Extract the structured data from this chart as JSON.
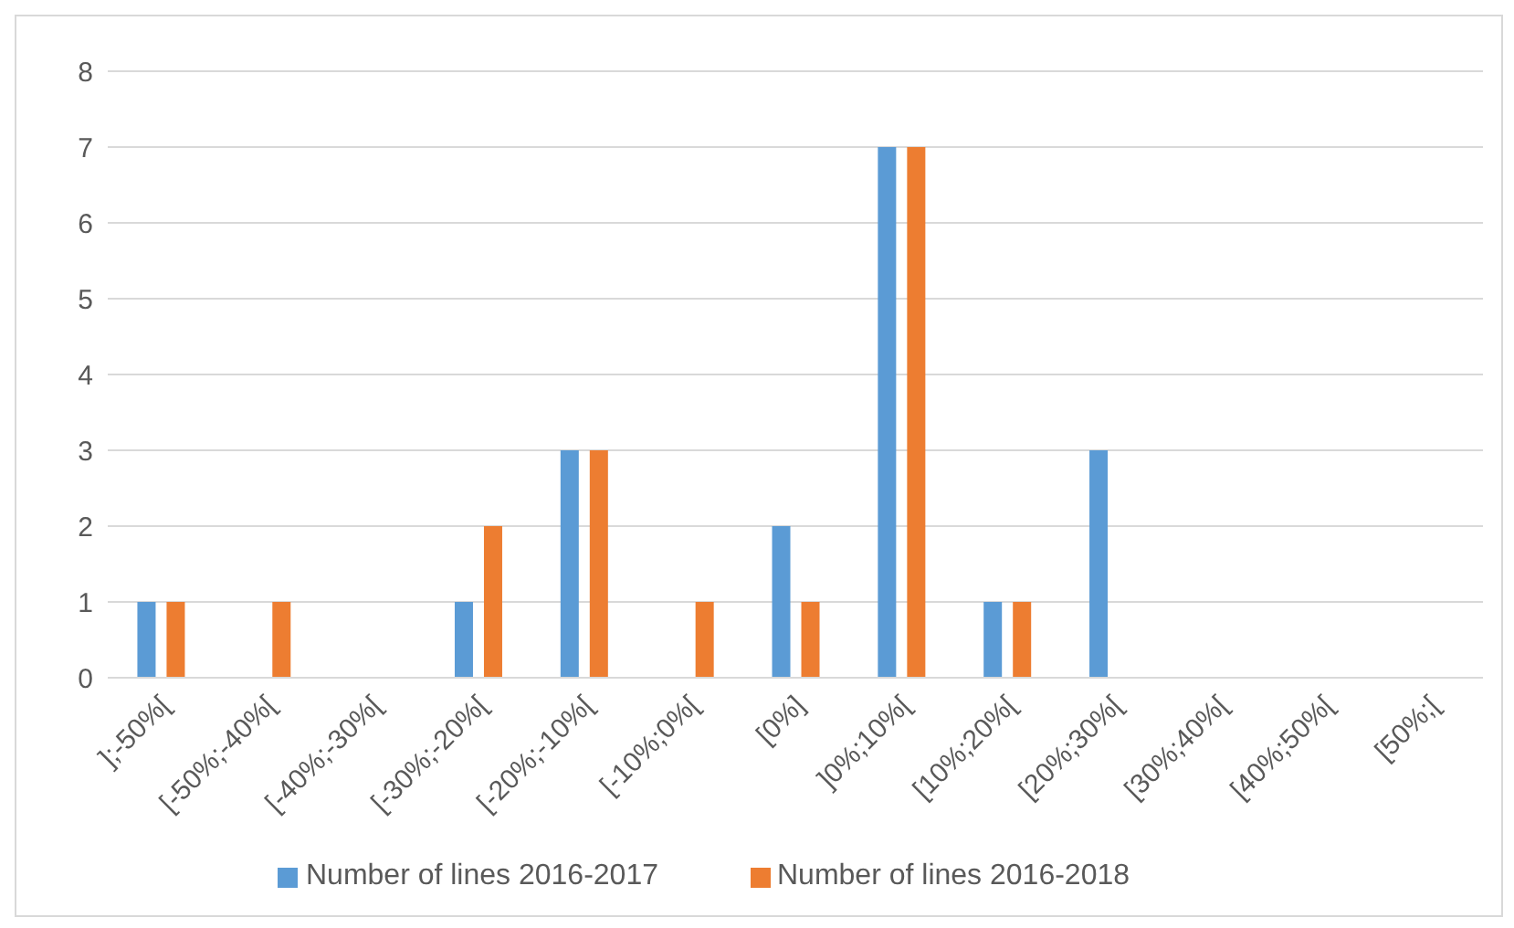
{
  "chart_data": {
    "type": "bar",
    "categories": [
      "];-50%[",
      "[-50%;-40%[",
      "[-40%;-30%[",
      "[-30%;-20%[",
      "[-20%;-10%[",
      "[-10%;0%[",
      "[0%]",
      "]0%;10%[",
      "[10%;20%[",
      "[20%;30%[",
      "[30%;40%[",
      "[40%;50%[",
      "[50%;["
    ],
    "series": [
      {
        "name": "Number of lines 2016-2017",
        "color": "#5b9bd5",
        "values": [
          1,
          0,
          0,
          1,
          3,
          0,
          2,
          7,
          1,
          3,
          0,
          0,
          0
        ]
      },
      {
        "name": "Number of lines 2016-2018",
        "color": "#ed7d31",
        "values": [
          1,
          1,
          0,
          2,
          3,
          1,
          1,
          7,
          1,
          0,
          0,
          0,
          0
        ]
      }
    ],
    "ylim": [
      0,
      8
    ],
    "yticks": [
      0,
      1,
      2,
      3,
      4,
      5,
      6,
      7,
      8
    ],
    "grid": "y",
    "legend": "bottom"
  }
}
